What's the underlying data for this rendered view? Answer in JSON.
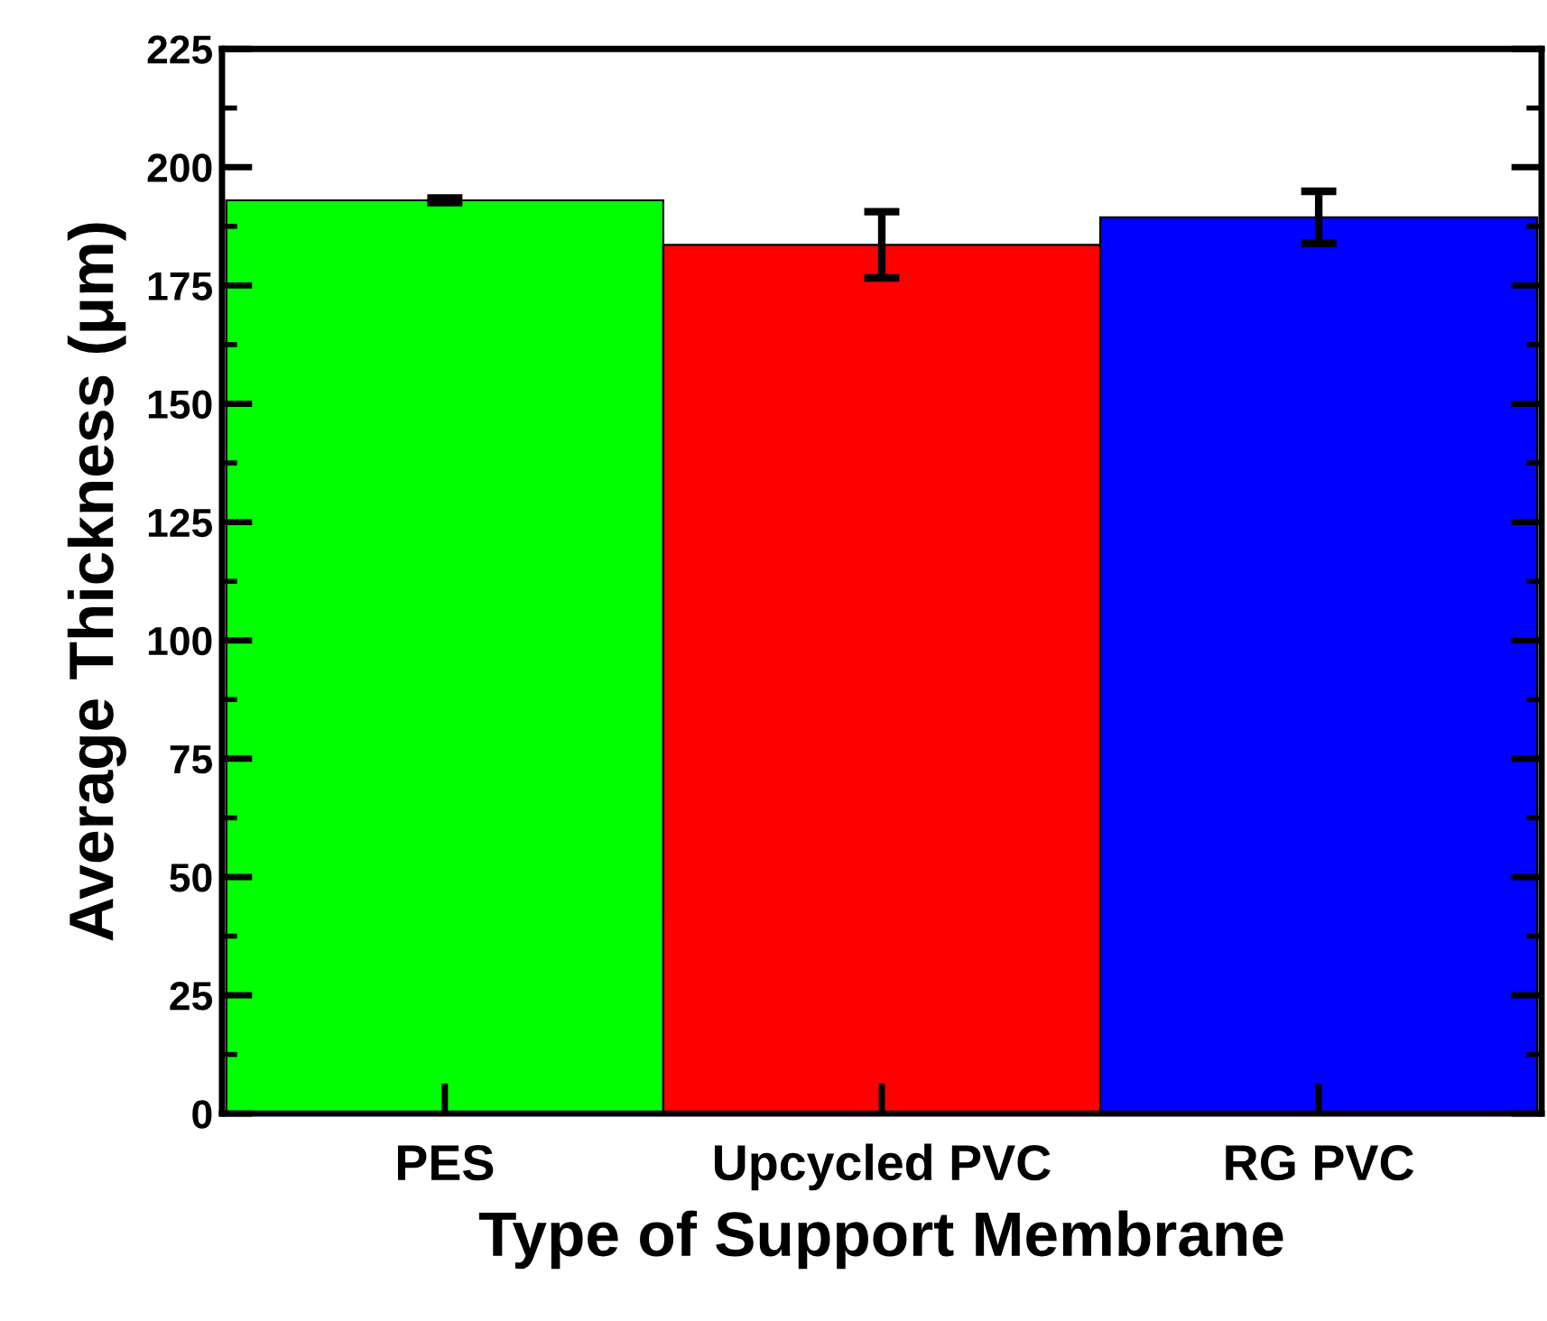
{
  "chart_data": {
    "type": "bar",
    "xlabel": "Type of Support Membrane",
    "ylabel": "Average Thickness (μm)",
    "categories": [
      "PES",
      "Upcycled PVC",
      "RG PVC"
    ],
    "values": [
      193,
      183.6,
      189.4
    ],
    "errors": [
      0.5,
      7,
      5.5
    ],
    "colors": [
      "#00ff00",
      "#ff0000",
      "#0000ff"
    ],
    "ylim": [
      0,
      225
    ],
    "yticks": [
      0,
      {
        "value": 12.5,
        "label": null
      },
      25,
      {
        "value": 37.5,
        "label": null
      },
      50,
      {
        "value": 62.5,
        "label": null
      },
      75,
      {
        "value": 87.5,
        "label": null
      },
      100,
      {
        "value": 112.5,
        "label": null
      },
      125,
      {
        "value": 137.5,
        "label": null
      },
      150,
      {
        "value": 162.5,
        "label": null
      },
      175,
      {
        "value": 187.5,
        "label": null
      },
      200,
      {
        "value": 212.5,
        "label": null
      },
      225
    ],
    "grid": false,
    "legend": false
  }
}
